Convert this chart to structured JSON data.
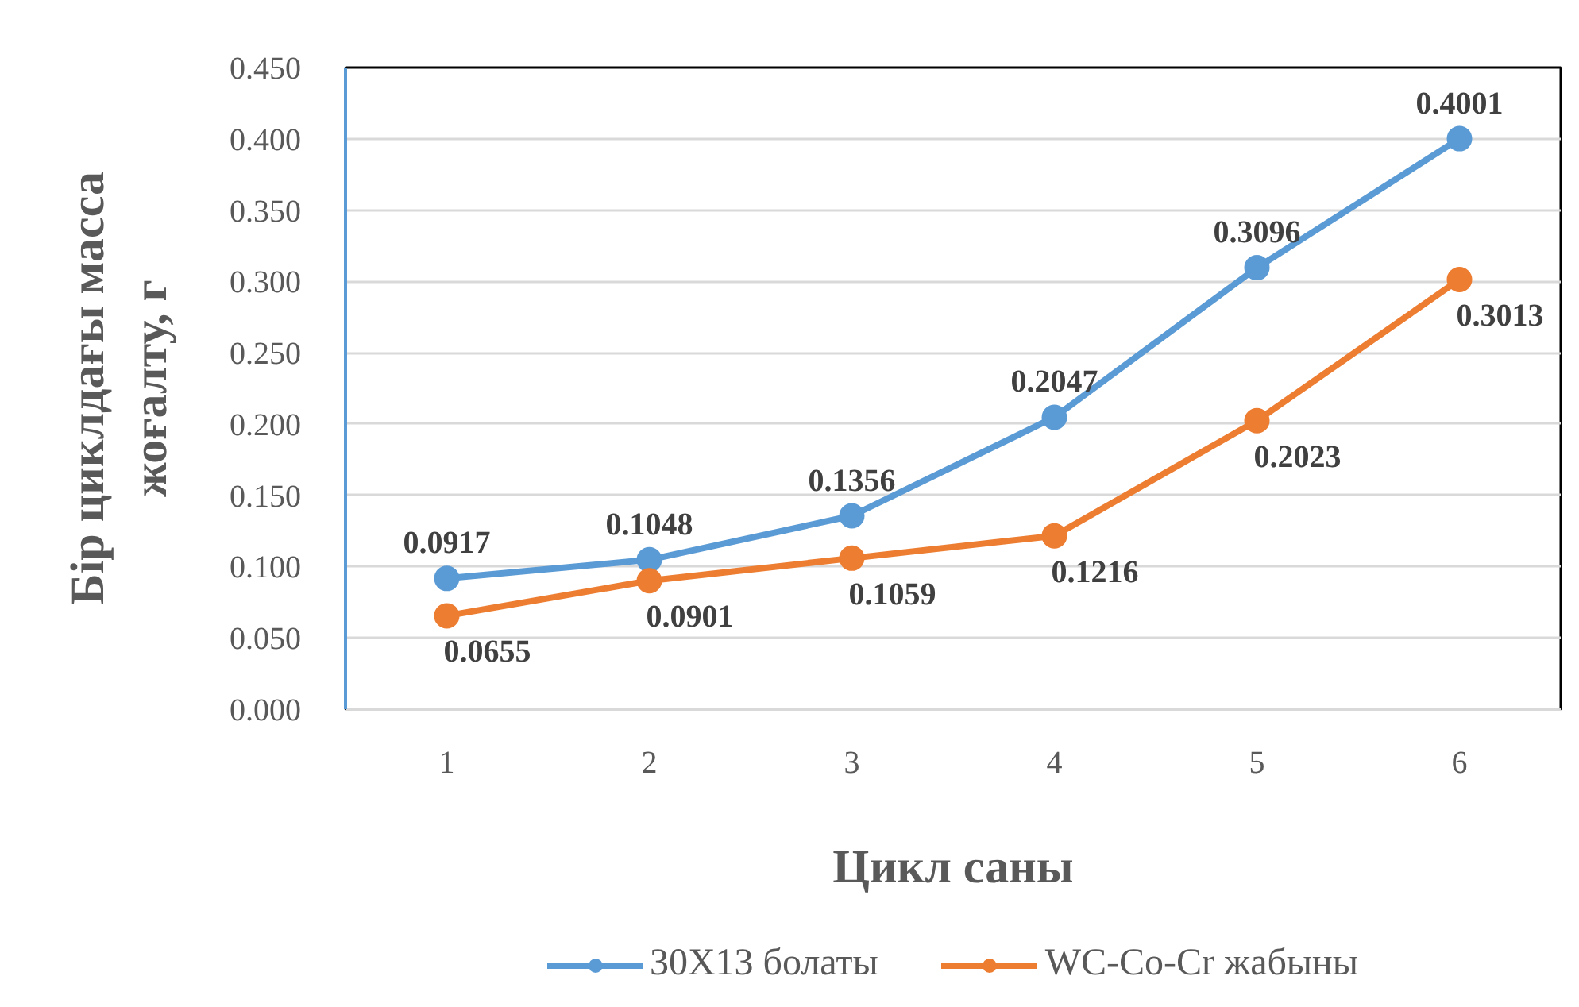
{
  "chart_data": {
    "type": "line",
    "xlabel": "Цикл саны",
    "ylabel": "Бір циклдағы масса\nжоғалту, г",
    "categories": [
      "1",
      "2",
      "3",
      "4",
      "5",
      "6"
    ],
    "series": [
      {
        "name": "30Х13 болаты",
        "color": "#5b9bd5",
        "values": [
          0.0917,
          0.1048,
          0.1356,
          0.2047,
          0.3096,
          0.4001
        ]
      },
      {
        "name": "WC-Co-Cr жабыны",
        "color": "#ed7d31",
        "values": [
          0.0655,
          0.0901,
          0.1059,
          0.1216,
          0.2023,
          0.3013
        ]
      }
    ],
    "ylim": [
      0,
      0.45
    ],
    "yticks": [
      {
        "value": 0,
        "label": "0.000"
      },
      {
        "value": 0.05,
        "label": "0.050"
      },
      {
        "value": 0.1,
        "label": "0.100"
      },
      {
        "value": 0.15,
        "label": "0.150"
      },
      {
        "value": 0.2,
        "label": "0.200"
      },
      {
        "value": 0.25,
        "label": "0.250"
      },
      {
        "value": 0.3,
        "label": "0.300"
      },
      {
        "value": 0.35,
        "label": "0.350"
      },
      {
        "value": 0.4,
        "label": "0.400"
      },
      {
        "value": 0.45,
        "label": "0.450"
      }
    ],
    "grid": "y",
    "legend": "bottom",
    "marker": "circle",
    "line_style": "solid",
    "data_labels": true
  }
}
